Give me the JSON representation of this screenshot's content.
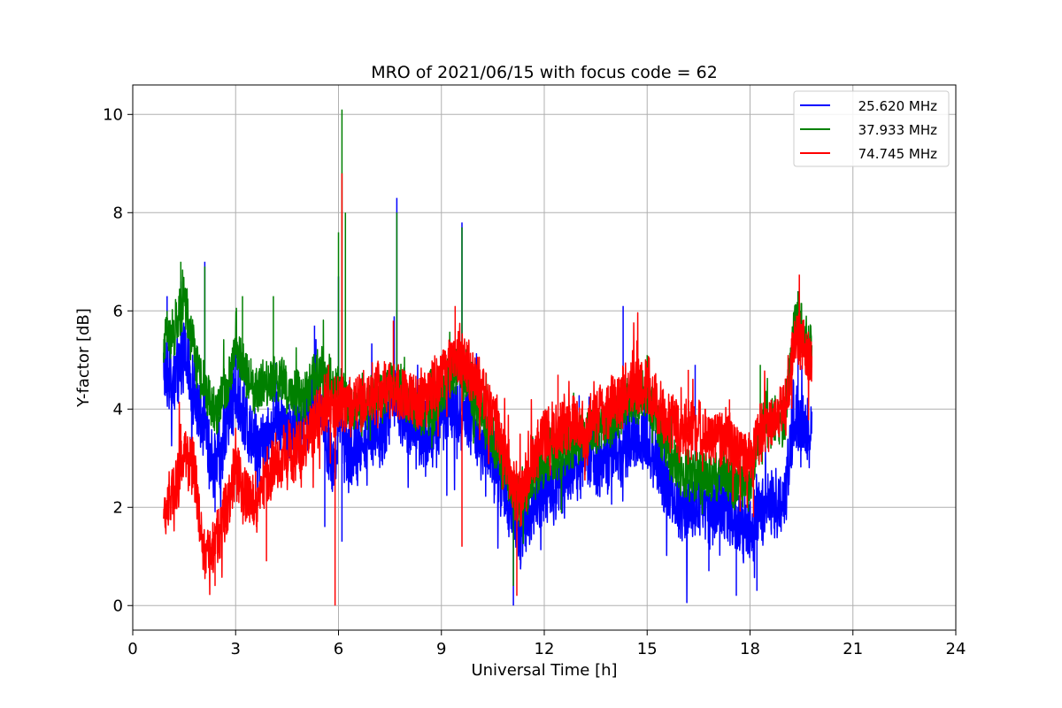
{
  "chart_data": {
    "type": "line",
    "title": "MRO of 2021/06/15 with focus code = 62",
    "xlabel": "Universal Time [h]",
    "ylabel": "Y-factor [dB]",
    "xlim": [
      0,
      24
    ],
    "ylim": [
      -0.5,
      10.6
    ],
    "xticks": [
      0,
      3,
      6,
      9,
      12,
      15,
      18,
      21,
      24
    ],
    "yticks": [
      0,
      2,
      4,
      6,
      8,
      10
    ],
    "grid": true,
    "legend_position": "top-right",
    "series": [
      {
        "name": "25.620 MHz",
        "color": "#0000ff",
        "x": [
          0.9,
          1.2,
          1.5,
          1.8,
          2.0,
          2.2,
          2.4,
          2.6,
          2.8,
          3.0,
          3.3,
          3.6,
          3.9,
          4.2,
          4.5,
          4.8,
          5.1,
          5.4,
          5.7,
          5.9,
          6.0,
          6.1,
          6.2,
          6.4,
          6.7,
          7.0,
          7.3,
          7.6,
          7.8,
          8.0,
          8.3,
          8.6,
          8.9,
          9.2,
          9.5,
          9.7,
          10.0,
          10.3,
          10.6,
          10.9,
          11.1,
          11.3,
          11.6,
          11.9,
          12.2,
          12.5,
          12.8,
          13.1,
          13.4,
          13.7,
          14.0,
          14.3,
          14.6,
          14.9,
          15.2,
          15.5,
          15.8,
          16.1,
          16.4,
          16.7,
          17.0,
          17.3,
          17.5,
          17.8,
          18.0,
          18.2,
          18.4,
          18.7,
          19.0,
          19.3,
          19.5,
          19.8
        ],
        "y": [
          4.9,
          4.6,
          5.2,
          4.3,
          3.9,
          3.3,
          2.9,
          3.2,
          3.8,
          4.4,
          3.6,
          3.3,
          3.4,
          3.8,
          3.6,
          3.7,
          3.9,
          4.2,
          3.2,
          2.8,
          4.1,
          3.6,
          3.0,
          3.1,
          3.4,
          3.6,
          3.5,
          4.4,
          4.1,
          3.8,
          3.5,
          3.4,
          3.6,
          4.1,
          4.0,
          3.9,
          3.6,
          3.2,
          2.8,
          2.3,
          1.8,
          1.4,
          1.9,
          2.3,
          2.4,
          2.5,
          2.8,
          3.0,
          2.9,
          3.1,
          3.0,
          3.2,
          3.4,
          3.5,
          3.1,
          2.6,
          2.2,
          1.9,
          2.1,
          1.9,
          2.0,
          2.1,
          1.7,
          1.6,
          1.5,
          1.9,
          2.1,
          2.0,
          2.2,
          3.9,
          3.6,
          3.5
        ],
        "peaks": [
          [
            1.0,
            6.3
          ],
          [
            1.4,
            6.6
          ],
          [
            2.1,
            7.0
          ],
          [
            3.0,
            5.3
          ],
          [
            5.3,
            5.7
          ],
          [
            6.0,
            6.7
          ],
          [
            7.7,
            8.3
          ],
          [
            9.6,
            7.8
          ],
          [
            14.3,
            6.1
          ],
          [
            16.4,
            4.9
          ],
          [
            19.4,
            6.4
          ]
        ],
        "troughs": [
          [
            2.4,
            1.9
          ],
          [
            5.6,
            1.6
          ],
          [
            6.1,
            1.3
          ],
          [
            11.1,
            0.0
          ],
          [
            16.8,
            0.7
          ],
          [
            17.6,
            0.2
          ],
          [
            18.2,
            0.3
          ]
        ]
      },
      {
        "name": "37.933 MHz",
        "color": "#008000",
        "x": [
          0.9,
          1.2,
          1.5,
          1.8,
          2.0,
          2.2,
          2.4,
          2.6,
          2.8,
          3.0,
          3.3,
          3.6,
          3.9,
          4.2,
          4.5,
          4.8,
          5.1,
          5.4,
          5.7,
          5.9,
          6.0,
          6.1,
          6.2,
          6.4,
          6.7,
          7.0,
          7.3,
          7.6,
          7.8,
          8.0,
          8.3,
          8.6,
          8.9,
          9.2,
          9.5,
          9.7,
          10.0,
          10.3,
          10.6,
          10.9,
          11.1,
          11.3,
          11.6,
          11.9,
          12.2,
          12.5,
          12.8,
          13.1,
          13.4,
          13.7,
          14.0,
          14.3,
          14.6,
          14.9,
          15.2,
          15.5,
          15.8,
          16.1,
          16.4,
          16.7,
          17.0,
          17.3,
          17.5,
          17.8,
          18.0,
          18.2,
          18.4,
          18.7,
          19.0,
          19.3,
          19.5,
          19.8
        ],
        "y": [
          5.4,
          5.6,
          6.2,
          5.1,
          4.6,
          4.3,
          3.9,
          4.2,
          4.5,
          5.2,
          4.7,
          4.4,
          4.5,
          4.6,
          4.4,
          4.3,
          4.3,
          4.8,
          4.6,
          4.5,
          4.5,
          4.3,
          4.2,
          4.1,
          4.0,
          4.2,
          4.3,
          4.5,
          4.4,
          4.2,
          4.0,
          3.9,
          4.1,
          4.6,
          4.8,
          4.6,
          4.2,
          3.7,
          3.2,
          2.7,
          2.2,
          2.0,
          2.5,
          2.9,
          3.0,
          3.1,
          3.3,
          3.5,
          3.5,
          3.7,
          3.8,
          4.0,
          4.2,
          4.3,
          3.9,
          3.4,
          2.9,
          2.6,
          2.7,
          2.6,
          2.6,
          2.7,
          2.4,
          2.6,
          2.4,
          3.3,
          3.6,
          3.8,
          3.7,
          5.8,
          5.6,
          5.1
        ],
        "peaks": [
          [
            1.0,
            6.0
          ],
          [
            1.4,
            7.0
          ],
          [
            2.1,
            6.9
          ],
          [
            3.2,
            6.3
          ],
          [
            4.1,
            6.3
          ],
          [
            6.0,
            7.6
          ],
          [
            6.1,
            10.1
          ],
          [
            6.2,
            8.0
          ],
          [
            7.7,
            8.0
          ],
          [
            9.6,
            7.7
          ],
          [
            15.0,
            5.1
          ],
          [
            18.3,
            4.9
          ],
          [
            19.4,
            6.4
          ]
        ],
        "troughs": [
          [
            11.1,
            0.4
          ],
          [
            17.5,
            2.0
          ]
        ]
      },
      {
        "name": "74.745 MHz",
        "color": "#ff0000",
        "x": [
          0.9,
          1.2,
          1.5,
          1.8,
          2.0,
          2.2,
          2.4,
          2.6,
          2.8,
          3.0,
          3.3,
          3.6,
          3.9,
          4.2,
          4.5,
          4.8,
          5.1,
          5.4,
          5.7,
          5.9,
          6.0,
          6.1,
          6.2,
          6.4,
          6.7,
          7.0,
          7.3,
          7.6,
          7.8,
          8.0,
          8.3,
          8.6,
          8.9,
          9.2,
          9.5,
          9.7,
          10.0,
          10.3,
          10.6,
          10.9,
          11.1,
          11.3,
          11.6,
          11.9,
          12.2,
          12.5,
          12.8,
          13.1,
          13.4,
          13.7,
          14.0,
          14.3,
          14.6,
          14.9,
          15.2,
          15.5,
          15.8,
          16.1,
          16.4,
          16.7,
          17.0,
          17.3,
          17.5,
          17.8,
          18.0,
          18.2,
          18.4,
          18.7,
          19.0,
          19.3,
          19.5,
          19.8
        ],
        "y": [
          1.8,
          2.3,
          3.1,
          2.7,
          1.4,
          1.0,
          1.2,
          1.7,
          2.2,
          2.8,
          2.2,
          2.1,
          2.6,
          2.9,
          3.1,
          3.2,
          3.4,
          3.9,
          4.1,
          4.0,
          4.2,
          4.1,
          4.0,
          4.1,
          4.2,
          4.3,
          4.4,
          4.5,
          4.3,
          4.2,
          4.1,
          4.3,
          4.6,
          4.9,
          5.1,
          4.9,
          4.6,
          4.2,
          3.7,
          3.0,
          2.4,
          2.2,
          2.8,
          3.4,
          3.5,
          3.6,
          3.7,
          3.6,
          3.7,
          4.0,
          4.1,
          4.2,
          4.4,
          4.6,
          4.2,
          3.9,
          3.6,
          3.5,
          3.6,
          3.5,
          3.4,
          3.5,
          3.2,
          3.1,
          2.9,
          3.4,
          3.6,
          3.8,
          3.9,
          5.4,
          5.3,
          4.9
        ],
        "peaks": [
          [
            1.4,
            3.7
          ],
          [
            6.1,
            8.8
          ],
          [
            7.6,
            5.8
          ],
          [
            9.4,
            6.1
          ],
          [
            12.4,
            4.7
          ],
          [
            14.7,
            5.4
          ],
          [
            16.2,
            4.8
          ],
          [
            17.4,
            4.2
          ],
          [
            19.4,
            5.9
          ]
        ],
        "troughs": [
          [
            2.4,
            0.4
          ],
          [
            3.9,
            0.9
          ],
          [
            5.9,
            0.0
          ],
          [
            9.6,
            1.2
          ],
          [
            11.2,
            0.2
          ],
          [
            18.1,
            1.8
          ]
        ]
      }
    ]
  }
}
